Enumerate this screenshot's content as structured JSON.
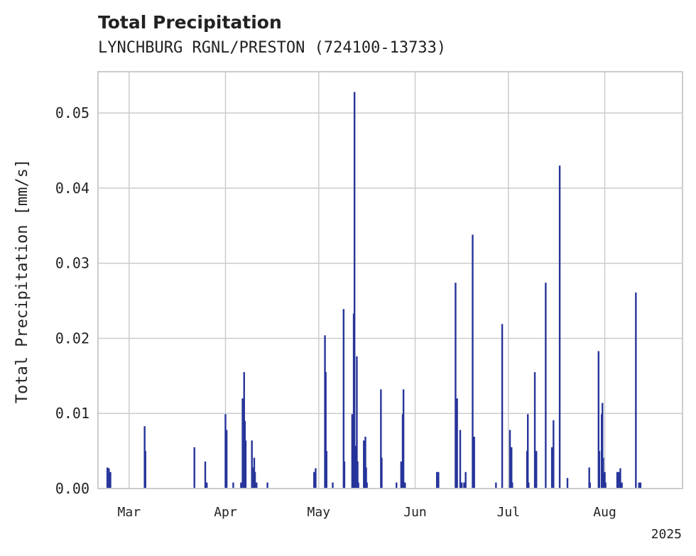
{
  "chart_data": {
    "type": "bar",
    "title": "Total Precipitation",
    "subtitle": "LYNCHBURG RGNL/PRESTON (724100-13733)",
    "ylabel": "Total Precipitation [mm/s]",
    "xlabel": "",
    "year_label": "2025",
    "ylim": [
      0,
      0.0555
    ],
    "xlim": [
      "2025-02-19",
      "2025-08-26"
    ],
    "yticks": [
      "0.00",
      "0.01",
      "0.02",
      "0.03",
      "0.04",
      "0.05"
    ],
    "xticks": [
      {
        "date": "2025-03-01",
        "label": "Mar"
      },
      {
        "date": "2025-04-01",
        "label": "Apr"
      },
      {
        "date": "2025-05-01",
        "label": "May"
      },
      {
        "date": "2025-06-01",
        "label": "Jun"
      },
      {
        "date": "2025-07-01",
        "label": "Jul"
      },
      {
        "date": "2025-08-01",
        "label": "Aug"
      }
    ],
    "grid": true,
    "bar_color": "#26349a",
    "x": [
      "2025-02-22T00:00",
      "2025-02-22T12:00",
      "2025-02-23T00:00",
      "2025-03-06T00:00",
      "2025-03-06T06:00",
      "2025-03-22T00:00",
      "2025-03-25T12:00",
      "2025-03-26T00:00",
      "2025-04-01T00:00",
      "2025-04-01T09:00",
      "2025-04-03T12:00",
      "2025-04-06T00:00",
      "2025-04-06T12:00",
      "2025-04-07T00:00",
      "2025-04-07T06:00",
      "2025-04-07T12:00",
      "2025-04-09T12:00",
      "2025-04-10T00:00",
      "2025-04-10T06:00",
      "2025-04-10T12:00",
      "2025-04-11T00:00",
      "2025-04-14T12:00",
      "2025-04-29T12:00",
      "2025-04-30T00:00",
      "2025-05-03T00:00",
      "2025-05-03T06:00",
      "2025-05-03T12:00",
      "2025-05-05T12:00",
      "2025-05-09T00:00",
      "2025-05-09T06:00",
      "2025-05-11T18:00",
      "2025-05-12T06:00",
      "2025-05-12T12:00",
      "2025-05-12T18:00",
      "2025-05-13T00:00",
      "2025-05-13T06:00",
      "2025-05-13T12:00",
      "2025-05-13T18:00",
      "2025-05-15T12:00",
      "2025-05-16T00:00",
      "2025-05-16T06:00",
      "2025-05-16T12:00",
      "2025-05-21T00:00",
      "2025-05-21T06:00",
      "2025-05-26T00:00",
      "2025-05-27T12:00",
      "2025-05-28T00:00",
      "2025-05-28T06:00",
      "2025-05-28T12:00",
      "2025-05-28T18:00",
      "2025-06-08T00:00",
      "2025-06-08T12:00",
      "2025-06-14T00:00",
      "2025-06-14T12:00",
      "2025-06-15T12:00",
      "2025-06-16T00:00",
      "2025-06-16T18:00",
      "2025-06-17T06:00",
      "2025-06-19T12:00",
      "2025-06-20T00:00",
      "2025-06-27T00:00",
      "2025-06-29T00:00",
      "2025-07-01T12:00",
      "2025-07-02T00:00",
      "2025-07-02T06:00",
      "2025-07-07T00:00",
      "2025-07-07T06:00",
      "2025-07-07T12:00",
      "2025-07-09T12:00",
      "2025-07-10T00:00",
      "2025-07-13T00:00",
      "2025-07-15T00:00",
      "2025-07-15T12:00",
      "2025-07-17T12:00",
      "2025-07-20T00:00",
      "2025-07-27T00:00",
      "2025-07-27T06:00",
      "2025-07-30T00:00",
      "2025-07-30T06:00",
      "2025-07-31T00:00",
      "2025-07-31T06:00",
      "2025-07-31T12:00",
      "2025-08-01T00:00",
      "2025-08-01T06:00",
      "2025-08-05T00:00",
      "2025-08-05T12:00",
      "2025-08-06T00:00",
      "2025-08-06T12:00",
      "2025-08-11T00:00",
      "2025-08-12T00:00",
      "2025-08-12T12:00"
    ],
    "values": [
      0.0028,
      0.0027,
      0.0022,
      0.0083,
      0.005,
      0.0055,
      0.0036,
      0.0008,
      0.0099,
      0.0078,
      0.0008,
      0.0008,
      0.012,
      0.0155,
      0.009,
      0.0064,
      0.0064,
      0.0028,
      0.0041,
      0.0022,
      0.0008,
      0.0008,
      0.0022,
      0.0027,
      0.0204,
      0.0155,
      0.005,
      0.0008,
      0.0239,
      0.0036,
      0.0099,
      0.0233,
      0.0528,
      0.0057,
      0.005,
      0.0176,
      0.0036,
      0.0008,
      0.0064,
      0.0069,
      0.0028,
      0.0008,
      0.0132,
      0.0041,
      0.0008,
      0.0036,
      0.0099,
      0.0132,
      0.0008,
      0.0008,
      0.0022,
      0.0022,
      0.0274,
      0.012,
      0.0078,
      0.0008,
      0.0008,
      0.0022,
      0.0338,
      0.0069,
      0.0008,
      0.0219,
      0.0078,
      0.0055,
      0.0008,
      0.005,
      0.0099,
      0.0008,
      0.0155,
      0.005,
      0.0274,
      0.0055,
      0.0091,
      0.043,
      0.0014,
      0.0028,
      0.0008,
      0.0183,
      0.005,
      0.0099,
      0.0114,
      0.0041,
      0.0022,
      0.0008,
      0.0022,
      0.0022,
      0.0027,
      0.0008,
      0.0261,
      0.0008,
      0.0008
    ]
  }
}
